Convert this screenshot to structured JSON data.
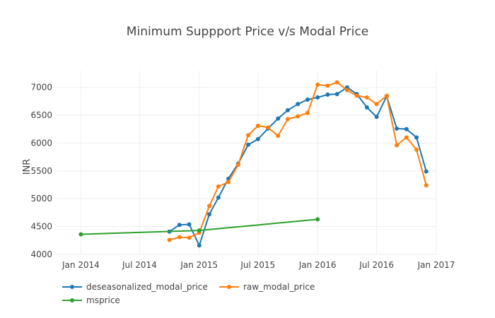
{
  "chart_data": {
    "type": "line",
    "title": "Minimum Suppport Price v/s Modal Price",
    "xlabel": "",
    "ylabel": "INR",
    "xlim": [
      "2013-10-18",
      "2017-01-01"
    ],
    "ylim": [
      4000,
      7300
    ],
    "x_ticks": [
      {
        "date": "2014-01-01",
        "label": "Jan 2014"
      },
      {
        "date": "2014-07-01",
        "label": "Jul 2014"
      },
      {
        "date": "2015-01-01",
        "label": "Jan 2015"
      },
      {
        "date": "2015-07-01",
        "label": "Jul 2015"
      },
      {
        "date": "2016-01-01",
        "label": "Jan 2016"
      },
      {
        "date": "2016-07-01",
        "label": "Jul 2016"
      },
      {
        "date": "2017-01-01",
        "label": "Jan 2017"
      }
    ],
    "y_ticks": [
      4000,
      4500,
      5000,
      5500,
      6000,
      6500,
      7000
    ],
    "grid": true,
    "legend_position": "bottom-left",
    "series": [
      {
        "name": "deseasonalized_modal_price",
        "color": "#1f77b4",
        "points": [
          {
            "x": "2014-10-01",
            "y": 4410
          },
          {
            "x": "2014-11-01",
            "y": 4530
          },
          {
            "x": "2014-12-01",
            "y": 4540
          },
          {
            "x": "2015-01-01",
            "y": 4160
          },
          {
            "x": "2015-02-01",
            "y": 4720
          },
          {
            "x": "2015-03-01",
            "y": 5020
          },
          {
            "x": "2015-04-01",
            "y": 5360
          },
          {
            "x": "2015-05-01",
            "y": 5630
          },
          {
            "x": "2015-06-01",
            "y": 5970
          },
          {
            "x": "2015-07-01",
            "y": 6070
          },
          {
            "x": "2015-08-01",
            "y": 6260
          },
          {
            "x": "2015-09-01",
            "y": 6440
          },
          {
            "x": "2015-10-01",
            "y": 6590
          },
          {
            "x": "2015-11-01",
            "y": 6700
          },
          {
            "x": "2015-12-01",
            "y": 6780
          },
          {
            "x": "2016-01-01",
            "y": 6820
          },
          {
            "x": "2016-02-01",
            "y": 6870
          },
          {
            "x": "2016-03-01",
            "y": 6880
          },
          {
            "x": "2016-04-01",
            "y": 7000
          },
          {
            "x": "2016-05-01",
            "y": 6880
          },
          {
            "x": "2016-06-01",
            "y": 6640
          },
          {
            "x": "2016-07-01",
            "y": 6470
          },
          {
            "x": "2016-08-01",
            "y": 6840
          },
          {
            "x": "2016-09-01",
            "y": 6260
          },
          {
            "x": "2016-10-01",
            "y": 6250
          },
          {
            "x": "2016-11-01",
            "y": 6100
          },
          {
            "x": "2016-12-01",
            "y": 5490
          }
        ]
      },
      {
        "name": "raw_modal_price",
        "color": "#ff7f0e",
        "points": [
          {
            "x": "2014-10-01",
            "y": 4260
          },
          {
            "x": "2014-11-01",
            "y": 4310
          },
          {
            "x": "2014-12-01",
            "y": 4300
          },
          {
            "x": "2015-01-01",
            "y": 4390
          },
          {
            "x": "2015-02-01",
            "y": 4870
          },
          {
            "x": "2015-03-01",
            "y": 5220
          },
          {
            "x": "2015-04-01",
            "y": 5300
          },
          {
            "x": "2015-05-01",
            "y": 5610
          },
          {
            "x": "2015-06-01",
            "y": 6140
          },
          {
            "x": "2015-07-01",
            "y": 6310
          },
          {
            "x": "2015-08-01",
            "y": 6280
          },
          {
            "x": "2015-09-01",
            "y": 6130
          },
          {
            "x": "2015-10-01",
            "y": 6430
          },
          {
            "x": "2015-11-01",
            "y": 6480
          },
          {
            "x": "2015-12-01",
            "y": 6540
          },
          {
            "x": "2016-01-01",
            "y": 7050
          },
          {
            "x": "2016-02-01",
            "y": 7030
          },
          {
            "x": "2016-03-01",
            "y": 7090
          },
          {
            "x": "2016-04-01",
            "y": 6950
          },
          {
            "x": "2016-05-01",
            "y": 6850
          },
          {
            "x": "2016-06-01",
            "y": 6820
          },
          {
            "x": "2016-07-01",
            "y": 6700
          },
          {
            "x": "2016-08-01",
            "y": 6850
          },
          {
            "x": "2016-09-01",
            "y": 5960
          },
          {
            "x": "2016-10-01",
            "y": 6100
          },
          {
            "x": "2016-11-01",
            "y": 5880
          },
          {
            "x": "2016-12-01",
            "y": 5240
          }
        ]
      },
      {
        "name": "msprice",
        "color": "#2ca02c",
        "points": [
          {
            "x": "2014-01-01",
            "y": 4360
          },
          {
            "x": "2015-01-01",
            "y": 4430
          },
          {
            "x": "2016-01-01",
            "y": 4630
          }
        ]
      }
    ]
  }
}
